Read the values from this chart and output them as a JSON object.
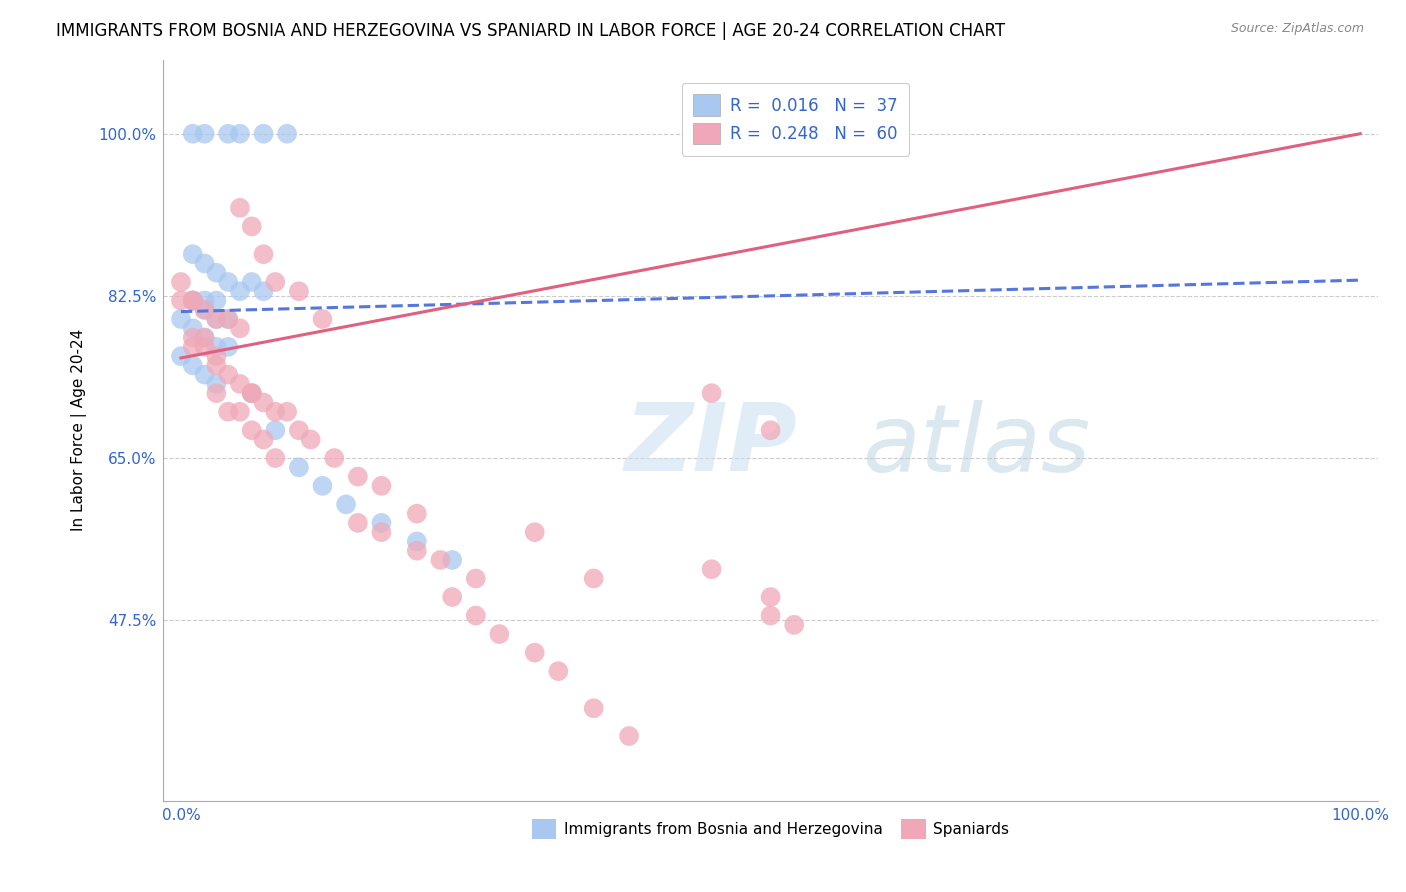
{
  "title": "IMMIGRANTS FROM BOSNIA AND HERZEGOVINA VS SPANIARD IN LABOR FORCE | AGE 20-24 CORRELATION CHART",
  "source_text": "Source: ZipAtlas.com",
  "ylabel": "In Labor Force | Age 20-24",
  "xlim": [
    0.0,
    1.0
  ],
  "ylim": [
    0.3,
    1.05
  ],
  "xtick_labels": [
    "0.0%",
    "100.0%"
  ],
  "ytick_labels": [
    "47.5%",
    "65.0%",
    "82.5%",
    "100.0%"
  ],
  "ytick_values": [
    0.475,
    0.65,
    0.825,
    1.0
  ],
  "blue_color": "#a8c8f0",
  "pink_color": "#f0a8b8",
  "blue_line_color": "#5577dd",
  "pink_line_color": "#e06080",
  "watermark_zip": "ZIP",
  "watermark_atlas": "atlas",
  "blue_scatter_x": [
    0.01,
    0.02,
    0.04,
    0.05,
    0.07,
    0.09,
    0.01,
    0.02,
    0.03,
    0.04,
    0.05,
    0.06,
    0.07,
    0.01,
    0.01,
    0.02,
    0.02,
    0.03,
    0.03,
    0.04,
    0.0,
    0.01,
    0.02,
    0.03,
    0.04,
    0.0,
    0.01,
    0.02,
    0.03,
    0.06,
    0.08,
    0.1,
    0.12,
    0.14,
    0.17,
    0.2,
    0.23
  ],
  "blue_scatter_y": [
    1.0,
    1.0,
    1.0,
    1.0,
    1.0,
    1.0,
    0.87,
    0.86,
    0.85,
    0.84,
    0.83,
    0.84,
    0.83,
    0.82,
    0.82,
    0.82,
    0.81,
    0.82,
    0.8,
    0.8,
    0.8,
    0.79,
    0.78,
    0.77,
    0.77,
    0.76,
    0.75,
    0.74,
    0.73,
    0.72,
    0.68,
    0.64,
    0.62,
    0.6,
    0.58,
    0.56,
    0.54
  ],
  "pink_scatter_x": [
    0.0,
    0.0,
    0.01,
    0.01,
    0.02,
    0.03,
    0.04,
    0.05,
    0.01,
    0.01,
    0.02,
    0.02,
    0.03,
    0.03,
    0.04,
    0.05,
    0.06,
    0.06,
    0.07,
    0.08,
    0.09,
    0.1,
    0.11,
    0.05,
    0.06,
    0.07,
    0.08,
    0.1,
    0.12,
    0.03,
    0.04,
    0.05,
    0.06,
    0.07,
    0.08,
    0.13,
    0.15,
    0.17,
    0.2,
    0.15,
    0.17,
    0.2,
    0.22,
    0.25,
    0.3,
    0.35,
    0.45,
    0.5,
    0.45,
    0.5,
    0.5,
    0.52,
    0.23,
    0.25,
    0.27,
    0.3,
    0.32,
    0.35,
    0.38
  ],
  "pink_scatter_y": [
    0.84,
    0.82,
    0.82,
    0.82,
    0.81,
    0.8,
    0.8,
    0.79,
    0.78,
    0.77,
    0.78,
    0.77,
    0.76,
    0.75,
    0.74,
    0.73,
    0.72,
    0.72,
    0.71,
    0.7,
    0.7,
    0.68,
    0.67,
    0.92,
    0.9,
    0.87,
    0.84,
    0.83,
    0.8,
    0.72,
    0.7,
    0.7,
    0.68,
    0.67,
    0.65,
    0.65,
    0.63,
    0.62,
    0.59,
    0.58,
    0.57,
    0.55,
    0.54,
    0.52,
    0.57,
    0.52,
    0.72,
    0.68,
    0.53,
    0.5,
    0.48,
    0.47,
    0.5,
    0.48,
    0.46,
    0.44,
    0.42,
    0.38,
    0.35
  ],
  "blue_line_x": [
    0.0,
    1.0
  ],
  "blue_line_y": [
    0.808,
    0.842
  ],
  "pink_line_x": [
    0.0,
    1.0
  ],
  "pink_line_y": [
    0.758,
    1.0
  ]
}
